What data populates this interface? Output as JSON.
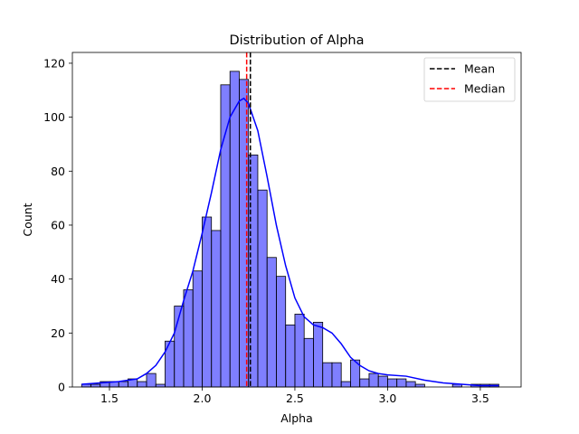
{
  "chart_data": {
    "type": "bar",
    "title": "Distribution of Alpha",
    "xlabel": "Alpha",
    "ylabel": "Count",
    "xlim": [
      1.3,
      3.72
    ],
    "ylim": [
      0,
      124
    ],
    "xticks": [
      1.5,
      2.0,
      2.5,
      3.0,
      3.5
    ],
    "yticks": [
      0,
      20,
      40,
      60,
      80,
      100,
      120
    ],
    "xtick_labels": [
      "1.5",
      "2.0",
      "2.5",
      "3.0",
      "3.5"
    ],
    "ytick_labels": [
      "0",
      "20",
      "40",
      "60",
      "80",
      "100",
      "120"
    ],
    "histogram": {
      "bin_edges": [
        1.35,
        1.4,
        1.45,
        1.5,
        1.55,
        1.6,
        1.65,
        1.7,
        1.75,
        1.8,
        1.85,
        1.9,
        1.95,
        2.0,
        2.05,
        2.1,
        2.15,
        2.2,
        2.25,
        2.3,
        2.35,
        2.4,
        2.45,
        2.5,
        2.55,
        2.6,
        2.65,
        2.7,
        2.75,
        2.8,
        2.85,
        2.9,
        2.95,
        3.0,
        3.05,
        3.1,
        3.15,
        3.2,
        3.25,
        3.3,
        3.35,
        3.4,
        3.45,
        3.5,
        3.55,
        3.6
      ],
      "counts": [
        1,
        1,
        2,
        2,
        2,
        3,
        2,
        5,
        1,
        17,
        30,
        36,
        43,
        63,
        58,
        112,
        117,
        114,
        86,
        73,
        48,
        41,
        23,
        27,
        18,
        24,
        9,
        9,
        2,
        10,
        3,
        5,
        4,
        3,
        3,
        2,
        1,
        0,
        0,
        0,
        1,
        0,
        1,
        1,
        1
      ],
      "color": "#0000ff",
      "fill_opacity": 0.5,
      "edge_color": "#000000"
    },
    "kde": {
      "x": [
        1.35,
        1.45,
        1.55,
        1.6,
        1.65,
        1.7,
        1.75,
        1.8,
        1.85,
        1.9,
        1.95,
        2.0,
        2.05,
        2.1,
        2.15,
        2.2,
        2.225,
        2.25,
        2.3,
        2.35,
        2.4,
        2.45,
        2.5,
        2.55,
        2.6,
        2.65,
        2.7,
        2.75,
        2.8,
        2.85,
        2.9,
        2.95,
        3.0,
        3.1,
        3.2,
        3.3,
        3.4,
        3.5,
        3.6
      ],
      "y": [
        1,
        1.5,
        2,
        2.5,
        3,
        5,
        8,
        13,
        20,
        32,
        43,
        57,
        72,
        88,
        100,
        106,
        107,
        105,
        95,
        78,
        60,
        45,
        33,
        26,
        23,
        22,
        20,
        16,
        11,
        8,
        6,
        5,
        4.5,
        4,
        2.5,
        1.5,
        1,
        0.5,
        0.5
      ],
      "color": "#0000ff"
    },
    "vlines": [
      {
        "name": "Mean",
        "x": 2.26,
        "color": "#000000",
        "style": "dashed"
      },
      {
        "name": "Median",
        "x": 2.24,
        "color": "#ff0000",
        "style": "dashed"
      }
    ],
    "legend": {
      "position": "top-right",
      "entries": [
        {
          "label": "Mean",
          "color": "#000000"
        },
        {
          "label": "Median",
          "color": "#ff0000"
        }
      ]
    },
    "grid": false
  }
}
